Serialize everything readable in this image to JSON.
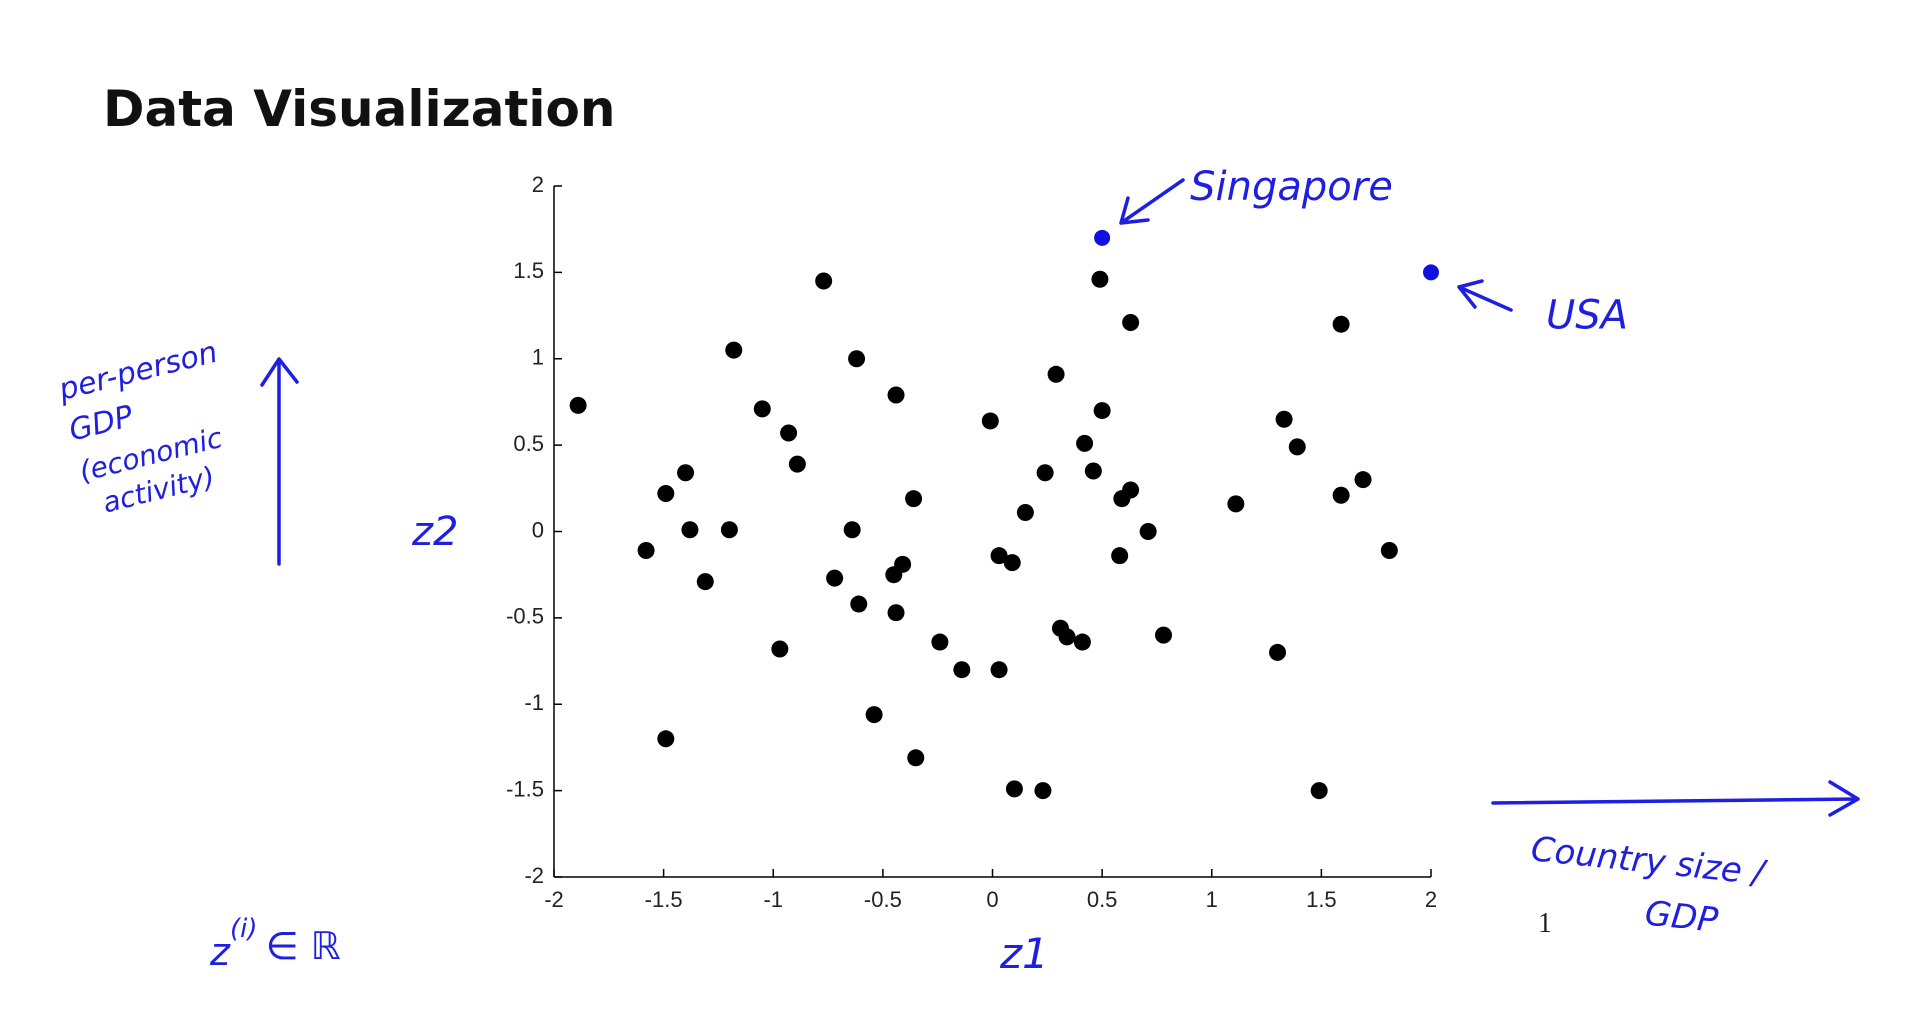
{
  "chart_data": {
    "type": "scatter",
    "title": "Data Visualization",
    "xlim": [
      -2,
      2
    ],
    "ylim": [
      -2,
      2
    ],
    "xticks": [
      -2,
      -1.5,
      -1,
      -0.5,
      0,
      0.5,
      1,
      1.5,
      2
    ],
    "yticks": [
      -2,
      -1.5,
      -1,
      -0.5,
      0,
      0.5,
      1,
      1.5,
      2
    ],
    "x_label": "z1",
    "y_label": "z2",
    "x_note": [
      "Country size /",
      "GDP"
    ],
    "y_note": [
      "per-person",
      "GDP",
      "(economic",
      "activity)"
    ],
    "dimension_note": {
      "base": "z",
      "sup": "(i)",
      "rest": "∈ ℝ"
    },
    "page_number": "1",
    "series": [
      {
        "color": "#000000",
        "x": [
          -1.89,
          -1.58,
          -1.49,
          -1.4,
          -1.38,
          -1.31,
          -1.49,
          -1.2,
          -1.18,
          -1.05,
          -0.93,
          -0.89,
          -0.97,
          -0.77,
          -0.62,
          -0.64,
          -0.72,
          -0.61,
          -0.44,
          -0.41,
          -0.45,
          -0.44,
          -0.36,
          -0.54,
          -0.35,
          -0.24,
          -0.14,
          -0.01,
          0.03,
          0.09,
          0.03,
          0.1,
          0.23,
          0.15,
          0.24,
          0.29,
          0.31,
          0.34,
          0.41,
          0.42,
          0.46,
          0.49,
          0.5,
          0.63,
          0.59,
          0.63,
          0.58,
          0.71,
          0.78,
          1.11,
          1.3,
          1.33,
          1.39,
          1.49,
          1.59,
          1.59,
          1.69,
          1.81
        ],
        "values": [
          0.73,
          -0.11,
          0.22,
          0.34,
          0.01,
          -0.29,
          -1.2,
          0.01,
          1.05,
          0.71,
          0.57,
          0.39,
          -0.68,
          1.45,
          1.0,
          0.01,
          -0.27,
          -0.42,
          0.79,
          -0.19,
          -0.25,
          -0.47,
          0.19,
          -1.06,
          -1.31,
          -0.64,
          -0.8,
          0.64,
          -0.14,
          -0.18,
          -0.8,
          -1.49,
          -1.5,
          0.11,
          0.34,
          0.91,
          -0.56,
          -0.61,
          -0.64,
          0.51,
          0.35,
          1.46,
          0.7,
          1.21,
          0.19,
          0.24,
          -0.14,
          0.0,
          -0.6,
          0.16,
          -0.7,
          0.65,
          0.49,
          -1.5,
          1.2,
          0.21,
          0.3,
          -0.11
        ]
      }
    ],
    "annotations": [
      {
        "text": "Singapore",
        "x": 0.5,
        "y": 1.7,
        "color": "#1010e0"
      },
      {
        "text": "USA",
        "x": 2.0,
        "y": 1.5,
        "color": "#1010e0"
      }
    ]
  }
}
